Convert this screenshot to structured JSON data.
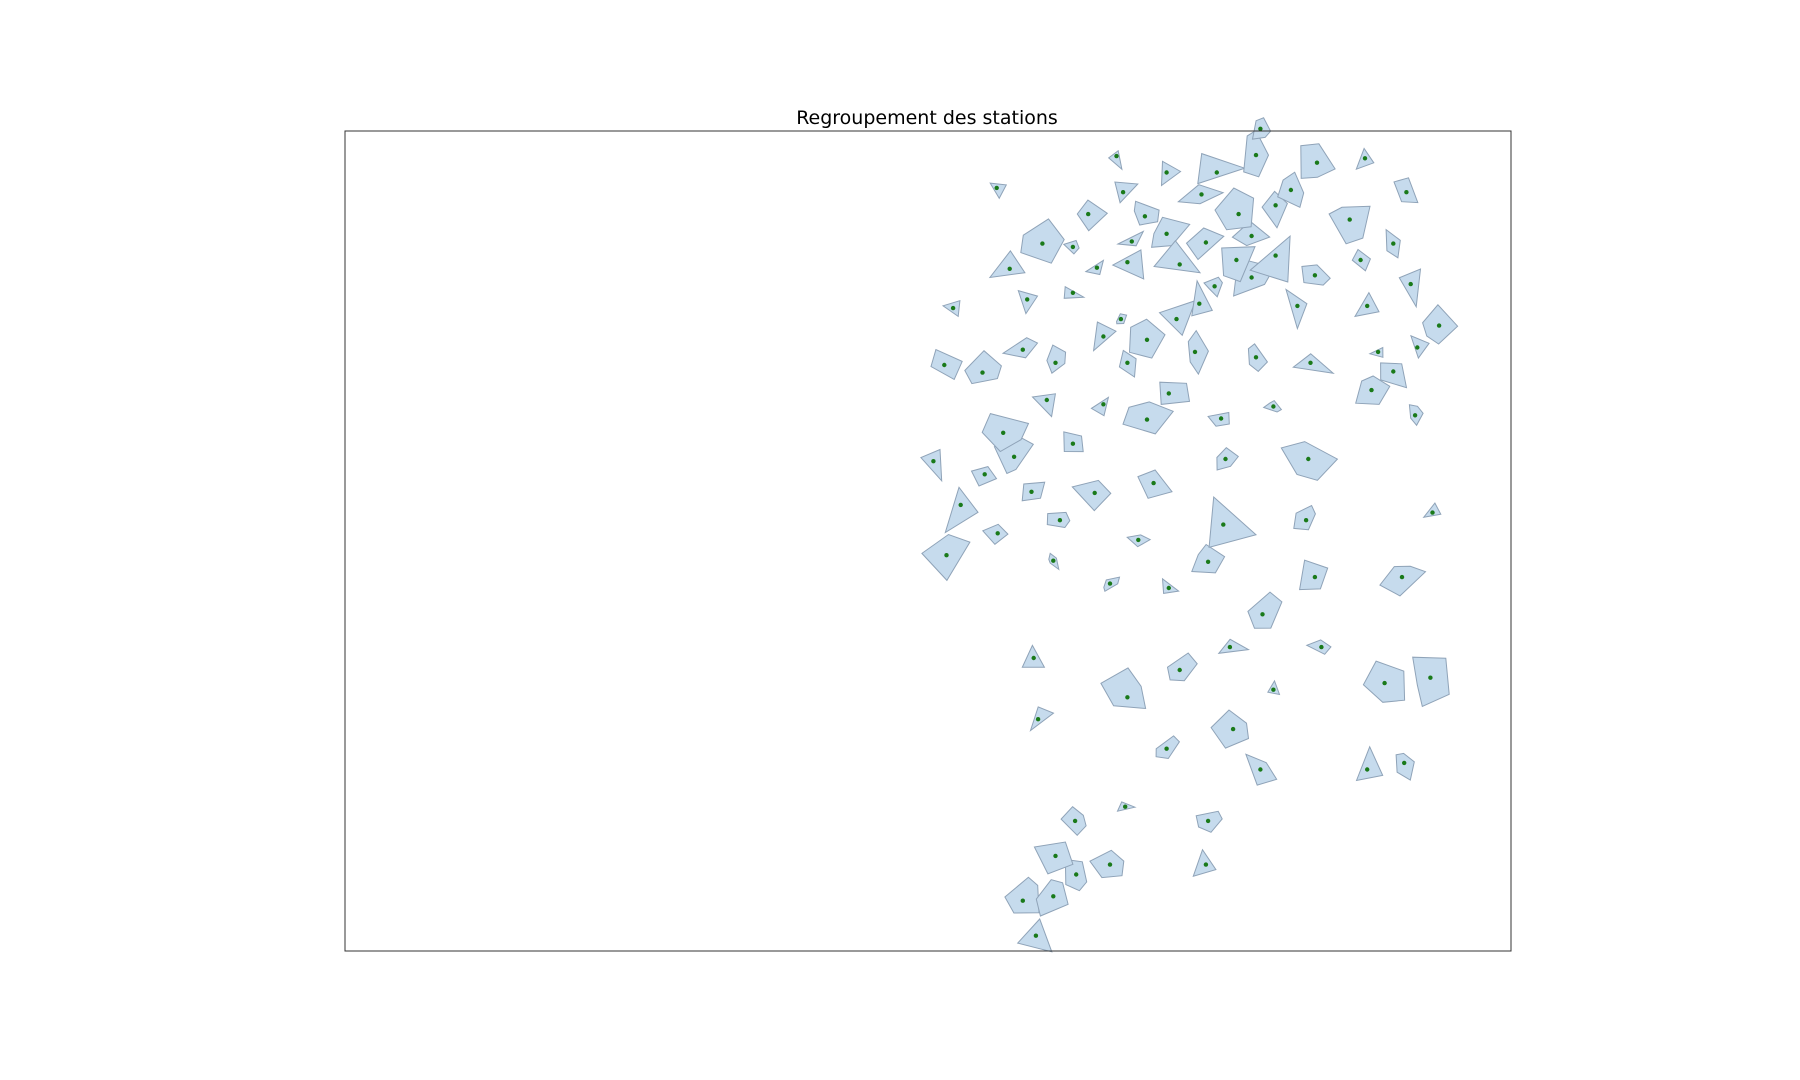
{
  "chart_data": {
    "type": "scatter",
    "title": "Regroupement des stations",
    "xlabel": "",
    "ylabel": "",
    "axes_visible": false,
    "grid": false,
    "legend": "none",
    "colors": {
      "hull_fill": "#c6dbed",
      "hull_edge": "#8fa3b8",
      "point": "#1a7a1a",
      "frame": "#333333"
    },
    "series": [
      {
        "type": "points",
        "points": [
          [
            1.04,
            -3.76
          ],
          [
            0.92,
            -3.44
          ],
          [
            1.2,
            -3.4
          ],
          [
            1.41,
            -3.2
          ],
          [
            1.22,
            -3.03
          ],
          [
            1.72,
            -3.11
          ],
          [
            2.6,
            -3.11
          ],
          [
            1.4,
            -2.71
          ],
          [
            1.86,
            -2.58
          ],
          [
            2.62,
            -2.71
          ],
          [
            3.1,
            -2.24
          ],
          [
            4.08,
            -2.24
          ],
          [
            2.24,
            -2.05
          ],
          [
            4.42,
            -2.18
          ],
          [
            2.85,
            -1.87
          ],
          [
            1.06,
            -1.78
          ],
          [
            1.88,
            -1.58
          ],
          [
            3.22,
            -1.51
          ],
          [
            2.36,
            -1.33
          ],
          [
            2.82,
            -1.12
          ],
          [
            3.66,
            -1.12
          ],
          [
            4.24,
            -1.45
          ],
          [
            4.66,
            -1.4
          ],
          [
            1.02,
            -1.22
          ],
          [
            3.12,
            -0.82
          ],
          [
            1.72,
            -0.54
          ],
          [
            2.26,
            -0.58
          ],
          [
            2.62,
            -0.34
          ],
          [
            3.6,
            -0.48
          ],
          [
            4.4,
            -0.48
          ],
          [
            1.2,
            -0.33
          ],
          [
            1.98,
            -0.14
          ],
          [
            0.22,
            -0.28
          ],
          [
            0.69,
            -0.08
          ],
          [
            0.35,
            0.18
          ],
          [
            1.26,
            0.04
          ],
          [
            2.76,
            0.0
          ],
          [
            3.52,
            0.04
          ],
          [
            4.68,
            0.11
          ],
          [
            1.0,
            0.3
          ],
          [
            1.58,
            0.29
          ],
          [
            2.12,
            0.38
          ],
          [
            0.1,
            0.58
          ],
          [
            0.57,
            0.46
          ],
          [
            0.84,
            0.62
          ],
          [
            2.78,
            0.6
          ],
          [
            3.54,
            0.6
          ],
          [
            0.74,
            0.84
          ],
          [
            1.38,
            0.74
          ],
          [
            2.06,
            0.96
          ],
          [
            2.74,
            0.97
          ],
          [
            3.22,
            1.08
          ],
          [
            4.52,
            1.0
          ],
          [
            1.14,
            1.14
          ],
          [
            1.66,
            1.1
          ],
          [
            2.26,
            1.2
          ],
          [
            4.12,
            1.23
          ],
          [
            4.32,
            1.4
          ],
          [
            0.2,
            1.46
          ],
          [
            0.55,
            1.39
          ],
          [
            1.22,
            1.48
          ],
          [
            1.88,
            1.48
          ],
          [
            2.5,
            1.58
          ],
          [
            3.06,
            1.53
          ],
          [
            3.56,
            1.48
          ],
          [
            4.18,
            1.58
          ],
          [
            0.92,
            1.6
          ],
          [
            1.66,
            1.72
          ],
          [
            2.06,
            1.69
          ],
          [
            4.54,
            1.62
          ],
          [
            4.74,
            1.82
          ],
          [
            0.28,
            1.98
          ],
          [
            0.96,
            2.06
          ],
          [
            1.82,
            1.88
          ],
          [
            2.33,
            1.88
          ],
          [
            2.54,
            2.02
          ],
          [
            3.44,
            2.0
          ],
          [
            4.08,
            2.0
          ],
          [
            1.38,
            2.12
          ],
          [
            2.68,
            2.18
          ],
          [
            3.02,
            2.26
          ],
          [
            3.6,
            2.28
          ],
          [
            4.48,
            2.2
          ],
          [
            0.8,
            2.34
          ],
          [
            1.6,
            2.35
          ],
          [
            1.88,
            2.4
          ],
          [
            2.88,
            2.42
          ],
          [
            4.02,
            2.42
          ],
          [
            1.1,
            2.57
          ],
          [
            1.38,
            2.54
          ],
          [
            1.92,
            2.59
          ],
          [
            2.24,
            2.66
          ],
          [
            2.6,
            2.58
          ],
          [
            3.02,
            2.64
          ],
          [
            4.32,
            2.57
          ],
          [
            1.52,
            2.84
          ],
          [
            2.04,
            2.82
          ],
          [
            2.9,
            2.84
          ],
          [
            3.24,
            2.92
          ],
          [
            3.92,
            2.79
          ],
          [
            0.68,
            3.08
          ],
          [
            1.84,
            3.04
          ],
          [
            2.56,
            3.02
          ],
          [
            3.38,
            3.06
          ],
          [
            4.44,
            3.04
          ],
          [
            1.78,
            3.37
          ],
          [
            2.24,
            3.22
          ],
          [
            2.7,
            3.22
          ],
          [
            3.06,
            3.38
          ],
          [
            3.62,
            3.31
          ],
          [
            4.06,
            3.35
          ],
          [
            3.1,
            3.62
          ],
          [
            3.24,
            2.46
          ],
          [
            2.36,
            2.38
          ]
        ]
      }
    ],
    "xlim": [
      -5.3,
      5.4
    ],
    "ylim": [
      -3.9,
      3.6
    ]
  }
}
